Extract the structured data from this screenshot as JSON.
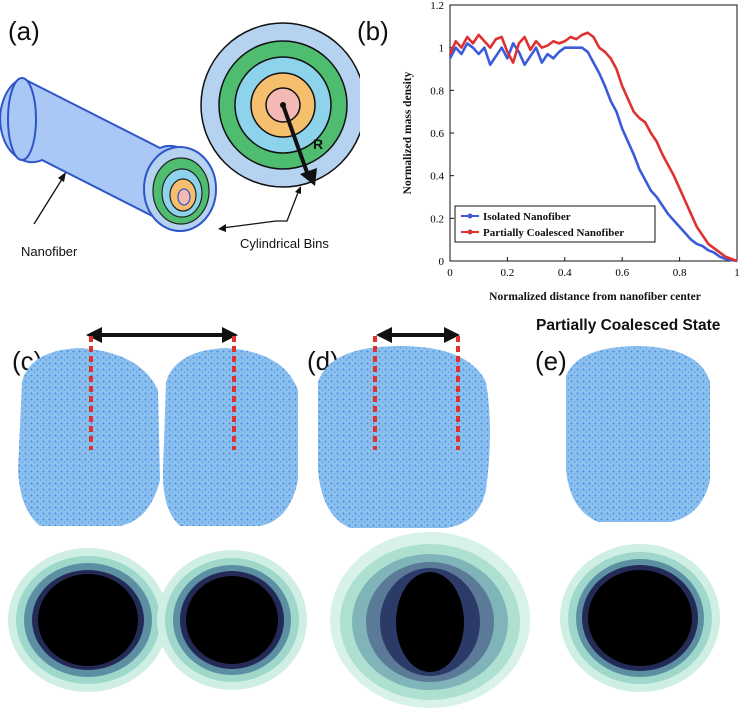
{
  "panels": {
    "a": "(a)",
    "b": "(b)",
    "c": "(c)",
    "d": "(d)",
    "e": "(e)"
  },
  "diagram_a": {
    "nanofiber_label": "Nanofiber",
    "bins_label": "Cylindrical Bins",
    "radius_label": "R",
    "ring_colors": [
      "#b5d3f0",
      "#4fbd6f",
      "#8ed3ec",
      "#f6bf6e",
      "#f4b9b4"
    ]
  },
  "section_title": "Partially Coalesced State",
  "chart_data": {
    "type": "line",
    "xlabel": "Normalized distance from nanofiber center",
    "ylabel": "Normalized mass density",
    "xlim": [
      0,
      1
    ],
    "ylim": [
      0,
      1.2
    ],
    "xticks": [
      "0",
      "0.2",
      "0.4",
      "0.6",
      "0.8",
      "1"
    ],
    "yticks": [
      "0",
      "0.2",
      "0.4",
      "0.6",
      "0.8",
      "1",
      "1.2"
    ],
    "legend_position": "bottom-left",
    "series": [
      {
        "name": "Isolated Nanofiber",
        "color": "#3b5bdb",
        "x": [
          0,
          0.02,
          0.04,
          0.06,
          0.08,
          0.1,
          0.12,
          0.14,
          0.16,
          0.18,
          0.2,
          0.22,
          0.24,
          0.26,
          0.28,
          0.3,
          0.32,
          0.34,
          0.36,
          0.38,
          0.4,
          0.42,
          0.44,
          0.46,
          0.48,
          0.5,
          0.52,
          0.54,
          0.56,
          0.58,
          0.6,
          0.62,
          0.64,
          0.66,
          0.68,
          0.7,
          0.72,
          0.74,
          0.76,
          0.78,
          0.8,
          0.82,
          0.84,
          0.86,
          0.88,
          0.9,
          0.92,
          0.94,
          0.96,
          0.98,
          1.0
        ],
        "y": [
          0.95,
          1.0,
          0.97,
          1.02,
          1.0,
          0.97,
          1.0,
          0.92,
          0.96,
          1.0,
          0.95,
          1.02,
          0.98,
          0.92,
          0.96,
          1.0,
          0.93,
          0.97,
          0.95,
          0.98,
          1.0,
          1.0,
          1.0,
          1.0,
          0.98,
          0.93,
          0.88,
          0.82,
          0.75,
          0.7,
          0.62,
          0.56,
          0.5,
          0.43,
          0.38,
          0.33,
          0.3,
          0.26,
          0.22,
          0.19,
          0.16,
          0.13,
          0.1,
          0.08,
          0.07,
          0.05,
          0.04,
          0.02,
          0.01,
          0.005,
          0.0
        ]
      },
      {
        "name": "Partially Coalesced Nanofiber",
        "color": "#e03131",
        "x": [
          0,
          0.02,
          0.04,
          0.06,
          0.08,
          0.1,
          0.12,
          0.14,
          0.16,
          0.18,
          0.2,
          0.22,
          0.24,
          0.26,
          0.28,
          0.3,
          0.32,
          0.34,
          0.36,
          0.38,
          0.4,
          0.42,
          0.44,
          0.46,
          0.48,
          0.5,
          0.52,
          0.54,
          0.56,
          0.58,
          0.6,
          0.62,
          0.64,
          0.66,
          0.68,
          0.7,
          0.72,
          0.74,
          0.76,
          0.78,
          0.8,
          0.82,
          0.84,
          0.86,
          0.88,
          0.9,
          0.92,
          0.94,
          0.96,
          0.98,
          1.0
        ],
        "y": [
          0.97,
          1.03,
          1.0,
          1.05,
          1.02,
          1.06,
          1.03,
          1.0,
          1.04,
          1.05,
          0.98,
          0.93,
          1.02,
          1.05,
          0.99,
          1.03,
          1.0,
          1.01,
          1.03,
          1.02,
          1.03,
          1.05,
          1.04,
          1.06,
          1.07,
          1.05,
          1.0,
          0.98,
          0.95,
          0.9,
          0.82,
          0.76,
          0.7,
          0.67,
          0.65,
          0.6,
          0.56,
          0.5,
          0.45,
          0.4,
          0.34,
          0.28,
          0.22,
          0.16,
          0.12,
          0.08,
          0.06,
          0.04,
          0.02,
          0.01,
          0.0
        ]
      }
    ]
  }
}
